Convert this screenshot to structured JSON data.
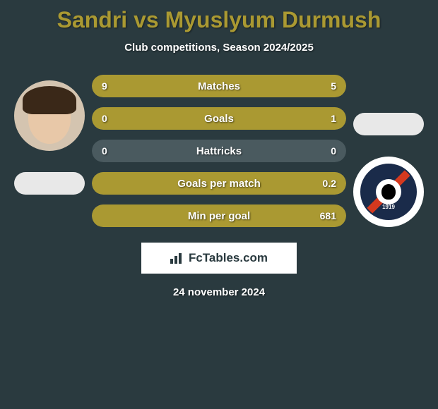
{
  "title": "Sandri vs Myuslyum Durmush",
  "subtitle": "Club competitions, Season 2024/2025",
  "date": "24 november 2024",
  "brand": "FcTables.com",
  "badge_year": "1919",
  "colors": {
    "background": "#2a3a3f",
    "bar_fill": "#aa9932",
    "bar_empty": "#4a5a5f",
    "title_color": "#aa9932",
    "text_color": "#ffffff",
    "pill_color": "#e8e8e8",
    "brand_bg": "#ffffff"
  },
  "stats": [
    {
      "label": "Matches",
      "left_val": "9",
      "right_val": "5",
      "left_pct": 64,
      "right_pct": 36
    },
    {
      "label": "Goals",
      "left_val": "0",
      "right_val": "1",
      "left_pct": 0,
      "right_pct": 100
    },
    {
      "label": "Hattricks",
      "left_val": "0",
      "right_val": "0",
      "left_pct": 0,
      "right_pct": 0
    },
    {
      "label": "Goals per match",
      "left_val": "",
      "right_val": "0.2",
      "left_pct": 0,
      "right_pct": 100
    },
    {
      "label": "Min per goal",
      "left_val": "",
      "right_val": "681",
      "left_pct": 0,
      "right_pct": 100
    }
  ]
}
